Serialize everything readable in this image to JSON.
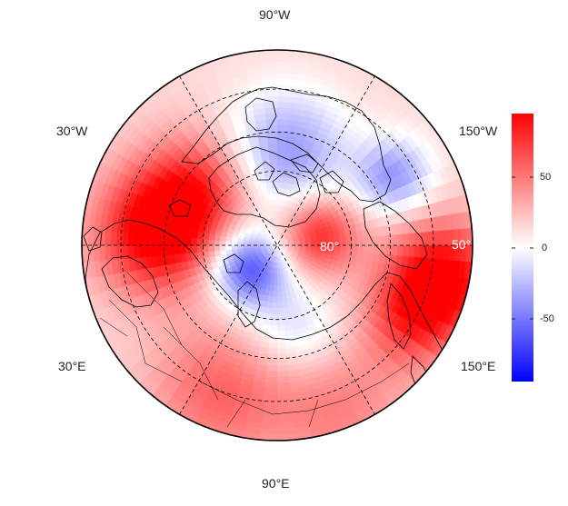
{
  "map": {
    "projection": "north-polar-stereographic",
    "longitude_labels": {
      "top": "90°W",
      "upper_left": "30°W",
      "upper_right": "150°W",
      "lower_left": "30°E",
      "lower_right": "150°E",
      "bottom": "90°E"
    },
    "latitude_labels": {
      "inner": "80°",
      "outer": "50°"
    }
  },
  "colorbar": {
    "colormap": "blue-white-red",
    "min_color": "#0000ff",
    "mid_color": "#ffffff",
    "max_color": "#ff0000",
    "range": [
      -95,
      95
    ],
    "ticks": [
      {
        "value": 50,
        "label": "50"
      },
      {
        "value": 0,
        "label": "0"
      },
      {
        "value": -50,
        "label": "-50"
      }
    ]
  },
  "colors": {
    "coastline": "#000000",
    "grid": "#000000",
    "outer_ring": "#000000"
  }
}
